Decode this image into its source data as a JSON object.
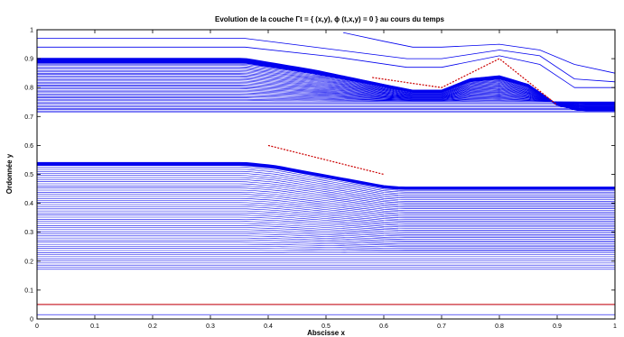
{
  "chart_data": {
    "type": "line",
    "title": "Evolution de la couche Γt = { (x,y), ϕ (t,x,y) = 0 } au cours du temps",
    "xlabel": "Abscisse x",
    "ylabel": "Ordonnée y",
    "xlim": [
      0,
      1
    ],
    "ylim": [
      0,
      1
    ],
    "xticks": [
      "0",
      "0.1",
      "0.2",
      "0.3",
      "0.4",
      "0.5",
      "0.6",
      "0.7",
      "0.8",
      "0.9",
      "1"
    ],
    "yticks": [
      "0",
      "0.1",
      "0.2",
      "0.3",
      "0.4",
      "0.5",
      "0.6",
      "0.7",
      "0.8",
      "0.9",
      "1"
    ],
    "grid": false,
    "legend": "none",
    "colors": {
      "curves": "#0000ee",
      "reference": "#cc0000",
      "axes": "#000000"
    },
    "families": {
      "upper": {
        "initial": {
          "x": [
            0,
            0.36,
            1
          ],
          "y": [
            0.9,
            0.9,
            0.9
          ]
        },
        "final": {
          "x": [
            0,
            0.36,
            0.48,
            0.6,
            0.65,
            0.7,
            0.75,
            0.8,
            0.85,
            0.9,
            0.94,
            1
          ],
          "y": [
            0.9,
            0.9,
            0.86,
            0.81,
            0.79,
            0.79,
            0.83,
            0.84,
            0.81,
            0.74,
            0.72,
            0.72
          ]
        },
        "lines_below": 38,
        "spacing": 0.0045,
        "dense_lines": 10,
        "dense_spacing": 0.0016
      },
      "middle": {
        "initial": {
          "x": [
            0,
            0.36,
            1
          ],
          "y": [
            0.54,
            0.54,
            0.54
          ]
        },
        "final": {
          "x": [
            0,
            0.36,
            0.41,
            0.6,
            0.63,
            1
          ],
          "y": [
            0.54,
            0.54,
            0.53,
            0.46,
            0.455,
            0.455
          ]
        },
        "lines_below": 50,
        "spacing": 0.0072,
        "dense_lines": 6,
        "dense_spacing": 0.0016
      }
    },
    "upper_envelopes": [
      {
        "x": [
          0,
          0.36,
          0.52,
          0.64,
          0.7,
          0.8,
          0.87,
          0.93,
          1
        ],
        "y": [
          0.94,
          0.94,
          0.905,
          0.87,
          0.87,
          0.91,
          0.88,
          0.8,
          0.8
        ]
      },
      {
        "x": [
          0,
          0.36,
          0.52,
          0.64,
          0.7,
          0.8,
          0.87,
          0.93,
          1
        ],
        "y": [
          0.97,
          0.97,
          0.93,
          0.9,
          0.9,
          0.93,
          0.91,
          0.83,
          0.82
        ]
      },
      {
        "x": [
          0.53,
          0.6,
          0.65,
          0.7,
          0.8,
          0.87,
          0.93,
          1
        ],
        "y": [
          0.99,
          0.96,
          0.94,
          0.94,
          0.95,
          0.93,
          0.88,
          0.85
        ]
      }
    ],
    "bottom_lines": [
      0.015,
      0.05
    ],
    "reference_series": [
      {
        "x": [
          0.58,
          0.7,
          0.8,
          0.9
        ],
        "y": [
          0.835,
          0.8,
          0.9,
          0.74
        ]
      },
      {
        "x": [
          0.4,
          0.6
        ],
        "y": [
          0.6,
          0.5
        ]
      },
      {
        "x": [
          0,
          1
        ],
        "y": [
          0.05,
          0.05
        ]
      }
    ]
  }
}
